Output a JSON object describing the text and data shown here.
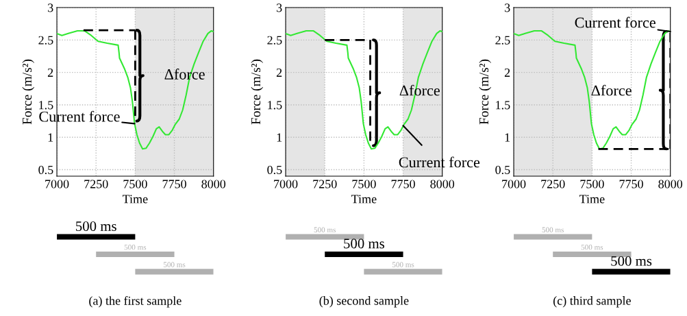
{
  "chart_data": [
    {
      "type": "line",
      "xlabel": "Time",
      "ylabel": "Force (m/s²)",
      "xlim": [
        7000,
        8000
      ],
      "ylim": [
        0.4,
        3
      ],
      "xticks": [
        7000,
        7250,
        7500,
        7750,
        8000
      ],
      "yticks": [
        0.5,
        1,
        1.5,
        2,
        2.5,
        3
      ],
      "grid": true,
      "bands": [
        {
          "axis": "x",
          "from": 7500,
          "to": 8000,
          "color": "#e5e5e5"
        }
      ],
      "series": [
        {
          "color": "#33e833",
          "x": [
            7000,
            7032,
            7073,
            7131,
            7178,
            7219,
            7263,
            7321,
            7391,
            7397,
            7400,
            7431,
            7453,
            7470,
            7482,
            7496,
            7511,
            7528,
            7547,
            7569,
            7591,
            7613,
            7635,
            7653,
            7674,
            7693,
            7715,
            7737,
            7756,
            7781,
            7803,
            7825,
            7847,
            7876,
            7905,
            7934,
            7964,
            7985,
            8000
          ],
          "values": [
            2.6,
            2.57,
            2.6,
            2.64,
            2.64,
            2.57,
            2.48,
            2.45,
            2.42,
            2.3,
            2.22,
            2.06,
            1.92,
            1.76,
            1.55,
            1.21,
            1.04,
            0.91,
            0.82,
            0.83,
            0.91,
            1.01,
            1.13,
            1.16,
            1.09,
            1.04,
            1.04,
            1.11,
            1.2,
            1.28,
            1.42,
            1.65,
            1.92,
            2.13,
            2.31,
            2.48,
            2.6,
            2.64,
            2.63
          ]
        },
        {
          "color": "#000000",
          "line_style": "dashed",
          "x": [
            7170,
            7500
          ],
          "values": [
            2.65,
            2.65
          ]
        },
        {
          "color": "#000000",
          "line_style": "dashed",
          "x": [
            7500,
            7500
          ],
          "values": [
            2.65,
            1.25
          ]
        }
      ],
      "annotations": [
        {
          "text": "Current force",
          "x": 7496,
          "y": 1.21
        },
        {
          "text": "Δforce",
          "x": 7500,
          "y": 1.95
        }
      ]
    },
    {
      "type": "bar",
      "orientation": "horizontal",
      "categories": [
        null,
        null,
        null
      ],
      "base": [
        7000,
        7250,
        7500
      ],
      "values": [
        500,
        500,
        500
      ],
      "colors": [
        "#000000",
        "#b0b0b0",
        "#b0b0b0"
      ],
      "value_labels": [
        "500 ms",
        "500 ms",
        "500 ms"
      ],
      "xlim": [
        7000,
        8000
      ],
      "tick_labels": false,
      "annotations": [
        "(a) the first sample"
      ]
    },
    {
      "type": "line",
      "xlabel": "Time",
      "ylabel": "Force (m/s²)",
      "xlim": [
        7000,
        8000
      ],
      "ylim": [
        0.4,
        3
      ],
      "xticks": [
        7000,
        7250,
        7500,
        7750,
        8000
      ],
      "yticks": [
        0.5,
        1,
        1.5,
        2,
        2.5,
        3
      ],
      "grid": true,
      "bands": [
        {
          "axis": "x",
          "from": 7000,
          "to": 7250,
          "color": "#e5e5e5"
        },
        {
          "axis": "x",
          "from": 7750,
          "to": 8000,
          "color": "#e5e5e5"
        }
      ],
      "series": [
        {
          "color": "#33e833",
          "x": [
            7000,
            7032,
            7073,
            7131,
            7178,
            7219,
            7263,
            7321,
            7391,
            7397,
            7400,
            7431,
            7453,
            7470,
            7482,
            7496,
            7511,
            7528,
            7547,
            7569,
            7591,
            7613,
            7635,
            7653,
            7674,
            7693,
            7715,
            7737,
            7756,
            7781,
            7803,
            7825,
            7847,
            7876,
            7905,
            7934,
            7964,
            7985,
            8000
          ],
          "values": [
            2.6,
            2.57,
            2.6,
            2.64,
            2.64,
            2.57,
            2.48,
            2.45,
            2.42,
            2.3,
            2.22,
            2.06,
            1.92,
            1.76,
            1.55,
            1.21,
            1.04,
            0.91,
            0.82,
            0.83,
            0.91,
            1.01,
            1.13,
            1.16,
            1.09,
            1.04,
            1.04,
            1.11,
            1.2,
            1.28,
            1.42,
            1.65,
            1.92,
            2.13,
            2.31,
            2.48,
            2.6,
            2.64,
            2.63
          ]
        },
        {
          "color": "#000000",
          "line_style": "dashed",
          "x": [
            7250,
            7540
          ],
          "values": [
            2.5,
            2.5
          ]
        },
        {
          "color": "#000000",
          "line_style": "dashed",
          "x": [
            7540,
            7540
          ],
          "values": [
            2.5,
            0.87
          ]
        }
      ],
      "annotations": [
        {
          "text": "Current force",
          "x": 7750,
          "y": 1.18
        },
        {
          "text": "Δforce",
          "x": 7540,
          "y": 1.7
        }
      ]
    },
    {
      "type": "bar",
      "orientation": "horizontal",
      "categories": [
        null,
        null,
        null
      ],
      "base": [
        7000,
        7250,
        7500
      ],
      "values": [
        500,
        500,
        500
      ],
      "colors": [
        "#b0b0b0",
        "#000000",
        "#b0b0b0"
      ],
      "value_labels": [
        "500 ms",
        "500 ms",
        "500 ms"
      ],
      "xlim": [
        7000,
        8000
      ],
      "tick_labels": false,
      "annotations": [
        "(b) second sample"
      ]
    },
    {
      "type": "line",
      "xlabel": "Time",
      "ylabel": "Force (m/s²)",
      "xlim": [
        7000,
        8000
      ],
      "ylim": [
        0.4,
        3
      ],
      "xticks": [
        7000,
        7250,
        7500,
        7750,
        8000
      ],
      "yticks": [
        0.5,
        1,
        1.5,
        2,
        2.5,
        3
      ],
      "grid": true,
      "bands": [
        {
          "axis": "x",
          "from": 7000,
          "to": 7500,
          "color": "#e5e5e5"
        }
      ],
      "series": [
        {
          "color": "#33e833",
          "x": [
            7000,
            7032,
            7073,
            7131,
            7178,
            7219,
            7263,
            7321,
            7391,
            7397,
            7400,
            7431,
            7453,
            7470,
            7482,
            7496,
            7511,
            7528,
            7547,
            7569,
            7591,
            7613,
            7635,
            7653,
            7674,
            7693,
            7715,
            7737,
            7756,
            7781,
            7803,
            7825,
            7847,
            7876,
            7905,
            7934,
            7964,
            7985,
            8000
          ],
          "values": [
            2.6,
            2.57,
            2.6,
            2.64,
            2.64,
            2.57,
            2.48,
            2.45,
            2.42,
            2.3,
            2.22,
            2.06,
            1.92,
            1.76,
            1.55,
            1.21,
            1.04,
            0.91,
            0.82,
            0.83,
            0.91,
            1.01,
            1.13,
            1.16,
            1.09,
            1.04,
            1.04,
            1.11,
            1.2,
            1.28,
            1.42,
            1.65,
            1.92,
            2.13,
            2.31,
            2.48,
            2.6,
            2.64,
            2.63
          ]
        },
        {
          "color": "#000000",
          "line_style": "dashed",
          "x": [
            7540,
            8000
          ],
          "values": [
            0.82,
            0.82
          ]
        },
        {
          "color": "#000000",
          "line_style": "dashed",
          "x": [
            8000,
            8000
          ],
          "values": [
            0.82,
            2.63
          ]
        }
      ],
      "annotations": [
        {
          "text": "Current force",
          "x": 8000,
          "y": 2.63
        },
        {
          "text": "Δforce",
          "x": 8000,
          "y": 1.7
        }
      ]
    },
    {
      "type": "bar",
      "orientation": "horizontal",
      "categories": [
        null,
        null,
        null
      ],
      "base": [
        7000,
        7250,
        7500
      ],
      "values": [
        500,
        500,
        500
      ],
      "colors": [
        "#b0b0b0",
        "#b0b0b0",
        "#000000"
      ],
      "value_labels": [
        "500 ms",
        "500 ms",
        "500 ms"
      ],
      "xlim": [
        7000,
        8000
      ],
      "tick_labels": false,
      "annotations": [
        "(c) third sample"
      ]
    }
  ]
}
